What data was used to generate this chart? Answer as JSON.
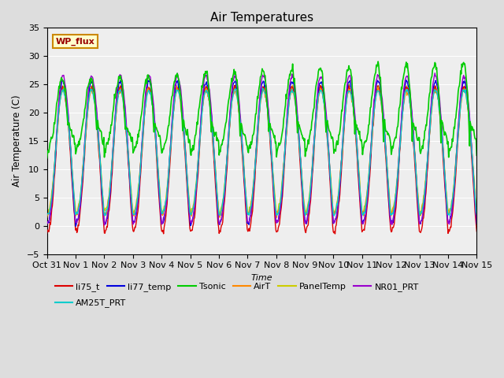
{
  "title": "Air Temperatures",
  "xlabel": "Time",
  "ylabel": "Air Temperature (C)",
  "ylim": [
    -5,
    35
  ],
  "yticks": [
    -5,
    0,
    5,
    10,
    15,
    20,
    25,
    30,
    35
  ],
  "n_days": 15,
  "series": {
    "li75_t": {
      "color": "#dd0000",
      "lw": 1.0,
      "zorder": 3
    },
    "li77_temp": {
      "color": "#0000dd",
      "lw": 1.0,
      "zorder": 3
    },
    "Tsonic": {
      "color": "#00cc00",
      "lw": 1.2,
      "zorder": 4
    },
    "AirT": {
      "color": "#ff8800",
      "lw": 1.0,
      "zorder": 3
    },
    "PanelTemp": {
      "color": "#cccc00",
      "lw": 1.0,
      "zorder": 2
    },
    "NR01_PRT": {
      "color": "#9900cc",
      "lw": 1.0,
      "zorder": 3
    },
    "AM25T_PRT": {
      "color": "#00cccc",
      "lw": 1.0,
      "zorder": 3
    }
  },
  "annotation_text": "WP_flux",
  "bg_color": "#dddddd",
  "plot_bg_color": "#eeeeee"
}
